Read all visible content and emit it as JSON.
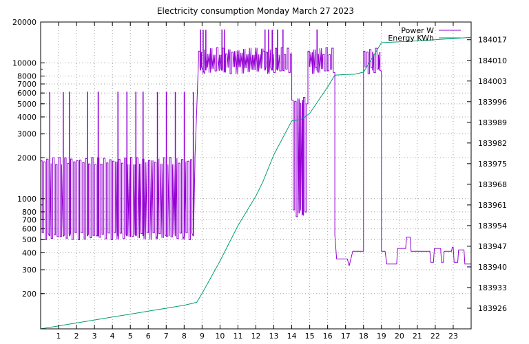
{
  "chart_data": {
    "type": "line",
    "title": "Electricity consumption Monday March 27 2023",
    "xlabel": "",
    "ylabel": "",
    "x_range": [
      0,
      24
    ],
    "x_ticks": [
      1,
      2,
      3,
      4,
      5,
      6,
      7,
      8,
      9,
      10,
      11,
      12,
      13,
      14,
      15,
      16,
      17,
      18,
      19,
      20,
      21,
      22,
      23
    ],
    "y_left": {
      "scale": "log",
      "range": [
        110,
        20000
      ],
      "ticks": [
        200,
        300,
        400,
        500,
        600,
        700,
        800,
        1000,
        2000,
        3000,
        4000,
        5000,
        6000,
        7000,
        8000,
        10000,
        20000
      ]
    },
    "y_right": {
      "scale": "linear",
      "range": [
        183919,
        184023
      ],
      "ticks": [
        183926,
        183933,
        183940,
        183947,
        183954,
        183961,
        183968,
        183975,
        183982,
        183989,
        183996,
        184003,
        184010,
        184017
      ]
    },
    "grid": true,
    "legend_position": "top-right",
    "colors": {
      "power": "#9400d3",
      "energy": "#009e73"
    },
    "series": [
      {
        "name": "Power W",
        "axis": "left",
        "style": "step",
        "segments": [
          {
            "kind": "osc",
            "x0": 0.0,
            "x1": 8.6,
            "low": 530,
            "high": 1900,
            "spikes": [
              0.5,
              1.25,
              1.6,
              2.6,
              3.2,
              4.3,
              4.8,
              5.3,
              5.7,
              6.5,
              7.0,
              7.5,
              8.0,
              8.5
            ],
            "spike_value": 6100
          },
          {
            "kind": "step",
            "points": [
              [
                8.6,
                2000
              ],
              [
                8.7,
                4500
              ],
              [
                8.75,
                7000
              ],
              [
                8.8,
                10500
              ]
            ]
          },
          {
            "kind": "osc",
            "x0": 8.8,
            "x1": 12.4,
            "low": 8800,
            "high": 12200,
            "spikes": [
              8.9,
              9.05,
              9.2,
              10.1,
              10.25
            ],
            "spike_value": 17500
          },
          {
            "kind": "osc",
            "x0": 12.4,
            "x1": 14.0,
            "low": 8800,
            "high": 12200,
            "spikes": [
              12.5,
              12.7,
              12.9,
              13.2,
              13.5
            ],
            "spike_value": 17500
          },
          {
            "kind": "osc",
            "x0": 14.0,
            "x1": 14.9,
            "low": 780,
            "high": 5300,
            "spikes": [
              14.4,
              14.6
            ],
            "spike_value": 5300
          },
          {
            "kind": "osc",
            "x0": 14.9,
            "x1": 16.4,
            "low": 8800,
            "high": 12200,
            "spikes": [
              15.4
            ],
            "spike_value": 17500
          },
          {
            "kind": "step",
            "points": [
              [
                16.4,
                540
              ],
              [
                16.5,
                360
              ],
              [
                17.1,
                360
              ],
              [
                17.2,
                320
              ],
              [
                17.4,
                410
              ],
              [
                18.0,
                410
              ],
              [
                18.0,
                9500
              ]
            ]
          },
          {
            "kind": "osc",
            "x0": 18.0,
            "x1": 19.0,
            "low": 8800,
            "high": 12200,
            "spikes": [
              18.5,
              18.9
            ],
            "spike_value": 12000
          },
          {
            "kind": "step",
            "points": [
              [
                19.0,
                410
              ],
              [
                19.2,
                410
              ],
              [
                19.3,
                330
              ],
              [
                19.85,
                330
              ],
              [
                19.9,
                430
              ],
              [
                20.35,
                430
              ],
              [
                20.4,
                520
              ],
              [
                20.6,
                520
              ],
              [
                20.65,
                410
              ],
              [
                21.7,
                410
              ],
              [
                21.75,
                340
              ],
              [
                21.9,
                340
              ],
              [
                21.95,
                430
              ],
              [
                22.3,
                430
              ],
              [
                22.35,
                340
              ],
              [
                22.45,
                340
              ],
              [
                22.5,
                410
              ],
              [
                22.9,
                410
              ],
              [
                22.95,
                440
              ],
              [
                23.0,
                440
              ],
              [
                23.05,
                340
              ],
              [
                23.25,
                340
              ],
              [
                23.3,
                420
              ],
              [
                23.6,
                420
              ],
              [
                23.65,
                330
              ],
              [
                24.0,
                330
              ]
            ]
          }
        ]
      },
      {
        "name": "Energy KWh",
        "axis": "right",
        "style": "line",
        "x": [
          0.0,
          1.0,
          2.0,
          3.0,
          4.0,
          5.0,
          6.0,
          7.0,
          8.0,
          8.7,
          9.0,
          10.0,
          11.0,
          12.0,
          12.4,
          13.0,
          14.0,
          14.5,
          15.0,
          16.0,
          16.4,
          17.0,
          17.5,
          18.0,
          18.5,
          19.0,
          20.0,
          21.0,
          22.0,
          23.0,
          24.0
        ],
        "values": [
          183919.0,
          183920.0,
          183921.0,
          183922.0,
          183923.0,
          183924.0,
          183925.0,
          183926.0,
          183927.0,
          183928.0,
          183931.0,
          183942.0,
          183954.0,
          183964.0,
          183969.0,
          183978.0,
          183989.5,
          183990.0,
          183992.0,
          184001.0,
          184005.0,
          184005.2,
          184005.3,
          184006.0,
          184011.0,
          184016.0,
          184016.3,
          184016.6,
          184017.0,
          184017.4,
          184017.8
        ]
      }
    ]
  }
}
